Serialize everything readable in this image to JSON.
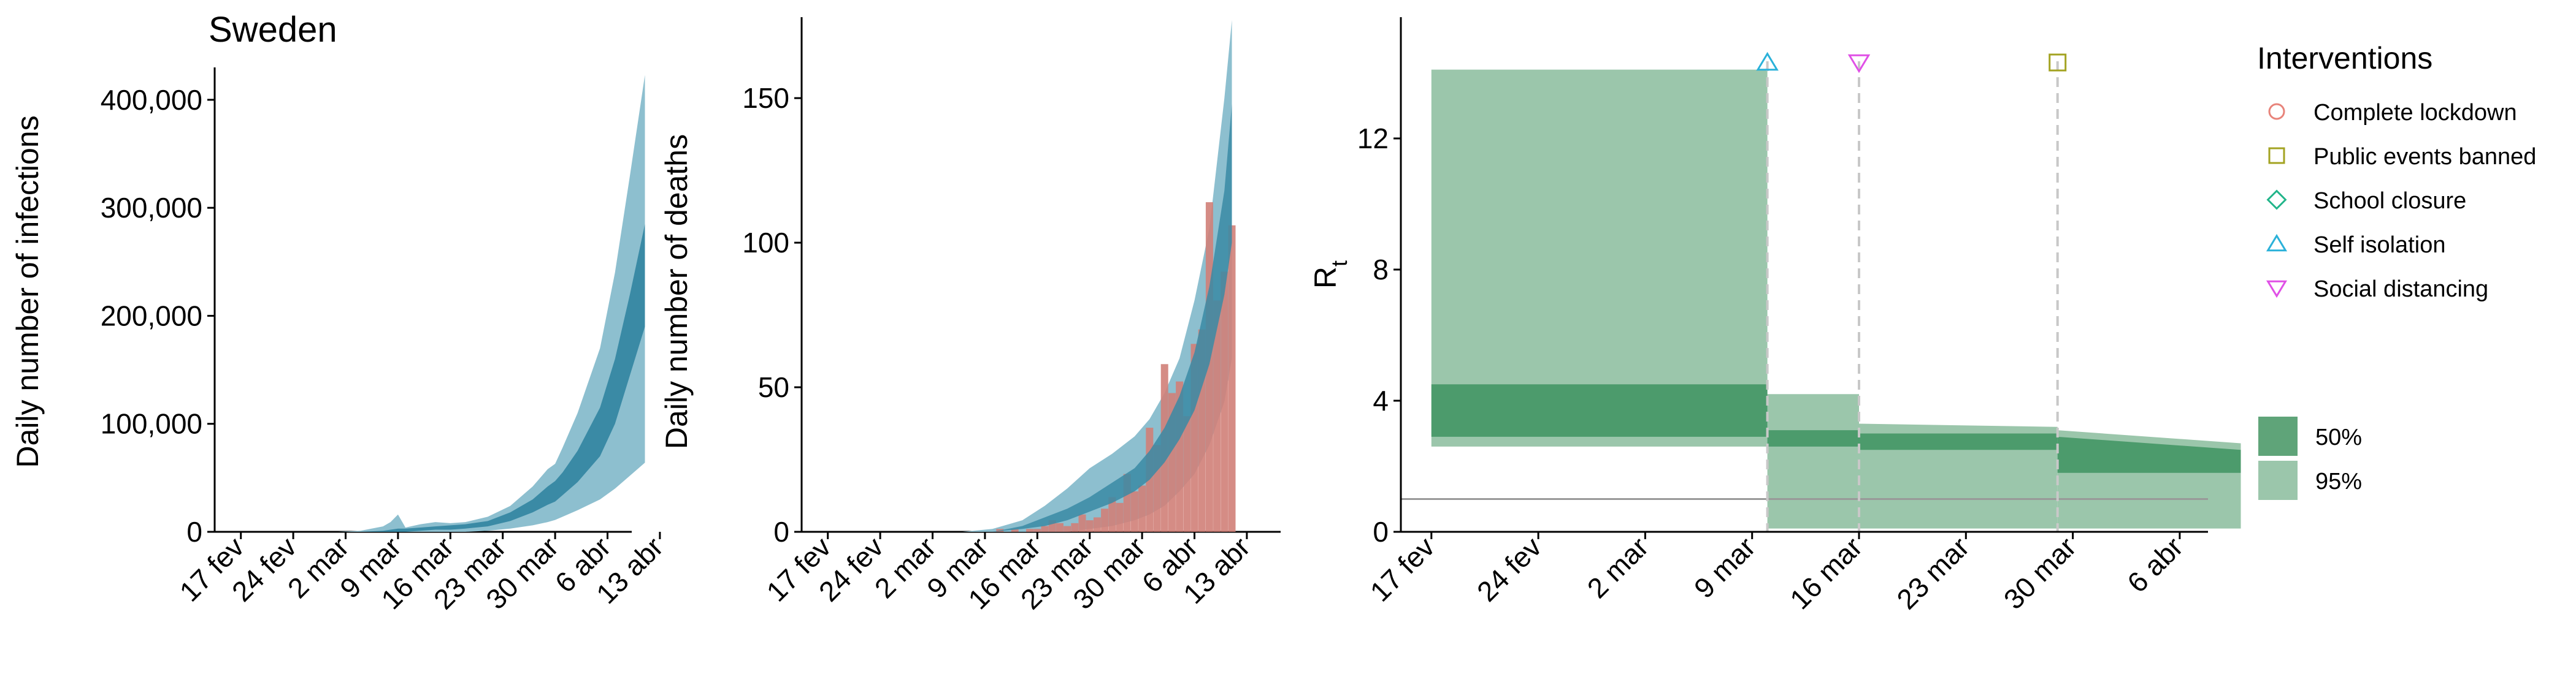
{
  "chart_data": [
    {
      "type": "area",
      "title": "Sweden",
      "xlabel": "",
      "ylabel": "Daily number of infections",
      "x_ticks": [
        "17 fev",
        "24 fev",
        "2 mar",
        "9 mar",
        "16 mar",
        "23 mar",
        "30 mar",
        "6 abr",
        "13 abr"
      ],
      "y_ticks": [
        "0",
        "100,000",
        "200,000",
        "300,000",
        "400,000"
      ],
      "ylim": [
        0,
        430000
      ],
      "x_dates": [
        "02-17",
        "02-21",
        "02-25",
        "03-01",
        "03-04",
        "03-07",
        "03-08",
        "03-09",
        "03-10",
        "03-12",
        "03-14",
        "03-16",
        "03-18",
        "03-21",
        "03-24",
        "03-27",
        "03-29",
        "03-30",
        "03-31",
        "04-02",
        "04-05",
        "04-07",
        "04-09",
        "04-11"
      ],
      "series": [
        {
          "band": "95%",
          "color": "#8dbfcf",
          "lower": [
            0,
            0,
            0,
            0,
            0,
            0,
            0,
            0,
            0,
            0,
            0,
            0,
            0,
            1000,
            3000,
            6000,
            9000,
            11000,
            14000,
            20000,
            30000,
            40000,
            52000,
            64000
          ],
          "upper": [
            0,
            0,
            0,
            0,
            1000,
            5000,
            9000,
            16000,
            4000,
            7000,
            9000,
            8000,
            9000,
            14000,
            24000,
            42000,
            58000,
            63000,
            78000,
            110000,
            170000,
            240000,
            330000,
            423000
          ]
        },
        {
          "band": "50%",
          "color": "#3a8aa5",
          "lower": [
            0,
            0,
            0,
            0,
            0,
            0,
            0,
            0,
            0,
            1000,
            2000,
            2000,
            3000,
            5000,
            10000,
            18000,
            25000,
            28000,
            34000,
            46000,
            70000,
            100000,
            145000,
            190000
          ],
          "upper": [
            0,
            0,
            0,
            0,
            0,
            1000,
            2000,
            3000,
            3000,
            4000,
            5000,
            6000,
            7000,
            10000,
            18000,
            30000,
            42000,
            47000,
            55000,
            75000,
            115000,
            160000,
            220000,
            285000
          ]
        }
      ]
    },
    {
      "type": "bar",
      "title": "",
      "xlabel": "",
      "ylabel": "Daily number of deaths",
      "x_ticks": [
        "17 fev",
        "24 fev",
        "2 mar",
        "9 mar",
        "16 mar",
        "23 mar",
        "30 mar",
        "6 abr",
        "13 abr"
      ],
      "y_ticks": [
        "0",
        "50",
        "100",
        "150"
      ],
      "ylim": [
        0,
        178
      ],
      "band_dates": [
        "02-17",
        "02-25",
        "03-02",
        "03-06",
        "03-10",
        "03-14",
        "03-17",
        "03-20",
        "03-23",
        "03-26",
        "03-29",
        "03-31",
        "04-02",
        "04-04",
        "04-06",
        "04-08",
        "04-10",
        "04-11"
      ],
      "series": [
        {
          "band": "95%",
          "color": "#8dbfcf",
          "lower": [
            0,
            0,
            0,
            0,
            0,
            0,
            0,
            0,
            1,
            2,
            4,
            6,
            9,
            14,
            20,
            30,
            45,
            60
          ],
          "upper": [
            0,
            0,
            0,
            0,
            1,
            4,
            9,
            15,
            22,
            27,
            33,
            39,
            48,
            60,
            80,
            105,
            150,
            177
          ]
        },
        {
          "band": "50%",
          "color": "#3a8aa5",
          "lower": [
            0,
            0,
            0,
            0,
            0,
            1,
            2,
            4,
            7,
            10,
            14,
            18,
            24,
            32,
            42,
            58,
            82,
            100
          ],
          "upper": [
            0,
            0,
            0,
            0,
            0,
            2,
            5,
            8,
            12,
            17,
            22,
            28,
            36,
            47,
            62,
            85,
            118,
            148
          ]
        }
      ],
      "bars": {
        "color": "#d08078",
        "dates": [
          "03-11",
          "03-13",
          "03-15",
          "03-16",
          "03-17",
          "03-18",
          "03-19",
          "03-20",
          "03-21",
          "03-22",
          "03-23",
          "03-24",
          "03-25",
          "03-26",
          "03-27",
          "03-28",
          "03-29",
          "03-30",
          "03-31",
          "04-01",
          "04-02",
          "04-03",
          "04-04",
          "04-05",
          "04-06",
          "04-07",
          "04-08",
          "04-09",
          "04-10",
          "04-11"
        ],
        "values": [
          1,
          1,
          1,
          1,
          2,
          4,
          3,
          2,
          3,
          6,
          4,
          5,
          8,
          12,
          10,
          20,
          14,
          16,
          36,
          30,
          58,
          48,
          52,
          40,
          65,
          70,
          114,
          80,
          90,
          106
        ]
      }
    },
    {
      "type": "area",
      "title": "",
      "xlabel": "",
      "ylabel": "R",
      "ylabel_subscript": "t",
      "x_ticks": [
        "17 fev",
        "24 fev",
        "2 mar",
        "9 mar",
        "16 mar",
        "23 mar",
        "30 mar",
        "6 abr"
      ],
      "y_ticks": [
        "0",
        "4",
        "8",
        "12"
      ],
      "ylim": [
        0,
        15.7
      ],
      "reference_line": 1,
      "intervention_dates": [
        {
          "name": "Self isolation",
          "date": "03-10"
        },
        {
          "name": "Social distancing",
          "date": "03-16"
        },
        {
          "name": "Public events banned",
          "date": "03-29"
        }
      ],
      "bands": [
        {
          "band": "95%",
          "color": "#9bc6ab",
          "segments": [
            {
              "from": "02-17",
              "to": "03-10",
              "lower": [
                2.6,
                2.6
              ],
              "upper": [
                14.1,
                14.1
              ]
            },
            {
              "from": "03-10",
              "to": "03-16",
              "lower": [
                0.1,
                0.1
              ],
              "upper": [
                4.2,
                4.2
              ]
            },
            {
              "from": "03-16",
              "to": "03-29",
              "lower": [
                0.1,
                0.1
              ],
              "upper": [
                3.3,
                3.2
              ]
            },
            {
              "from": "03-29",
              "to": "04-10",
              "lower": [
                0.1,
                0.1
              ],
              "upper": [
                3.1,
                2.7
              ]
            }
          ]
        },
        {
          "band": "50%",
          "color": "#4c9b6c",
          "segments": [
            {
              "from": "02-17",
              "to": "03-10",
              "lower": [
                2.9,
                2.9
              ],
              "upper": [
                4.5,
                4.5
              ]
            },
            {
              "from": "03-10",
              "to": "03-16",
              "lower": [
                2.6,
                2.6
              ],
              "upper": [
                3.1,
                3.1
              ]
            },
            {
              "from": "03-16",
              "to": "03-29",
              "lower": [
                2.5,
                2.5
              ],
              "upper": [
                3.0,
                3.0
              ]
            },
            {
              "from": "03-29",
              "to": "04-10",
              "lower": [
                1.8,
                1.8
              ],
              "upper": [
                2.9,
                2.5
              ]
            }
          ]
        }
      ]
    }
  ],
  "legend": {
    "title": "Interventions",
    "items": [
      {
        "label": "Complete lockdown",
        "shape": "circle",
        "color": "#e8837a"
      },
      {
        "label": "Public events banned",
        "shape": "square",
        "color": "#a3a322"
      },
      {
        "label": "School closure",
        "shape": "diamond",
        "color": "#22b58a"
      },
      {
        "label": "Self isolation",
        "shape": "triangle-up",
        "color": "#2ab1d9"
      },
      {
        "label": "Social distancing",
        "shape": "triangle-down",
        "color": "#e050e6"
      }
    ],
    "bands": [
      {
        "label": "50%",
        "color": "#5fa479"
      },
      {
        "label": "95%",
        "color": "#9bc6ab"
      }
    ]
  }
}
